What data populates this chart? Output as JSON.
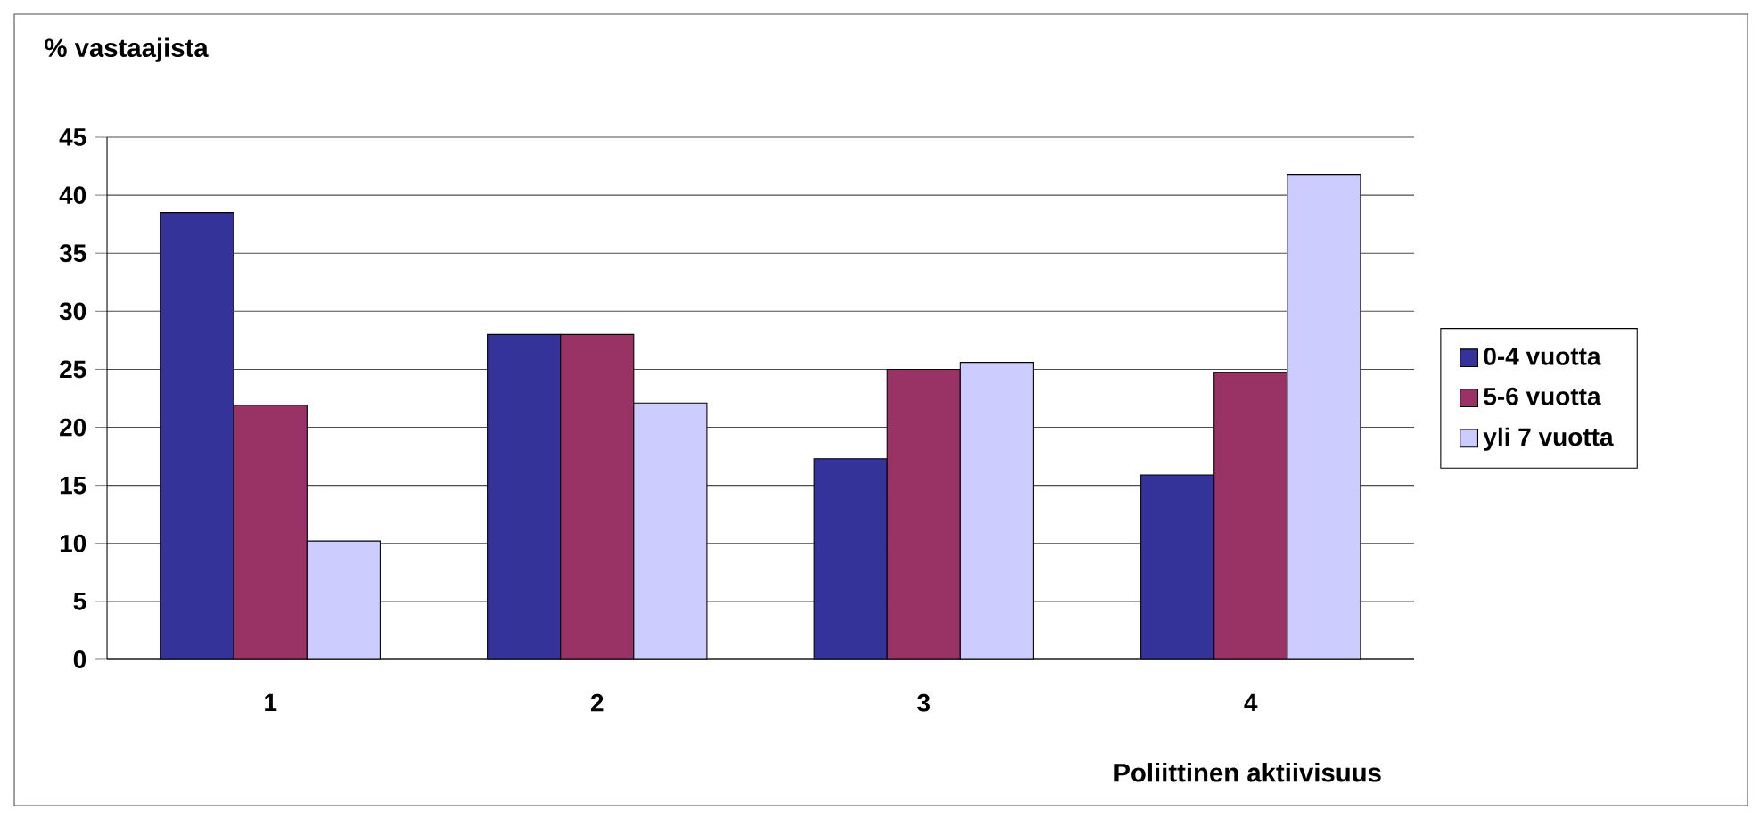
{
  "chart_data": {
    "type": "bar",
    "ylabel": "% vastaajista",
    "xlabel": "Poliittinen aktiivisuus",
    "categories": [
      "1",
      "2",
      "3",
      "4"
    ],
    "series": [
      {
        "name": "0-4 vuotta",
        "color": "#333399",
        "values": [
          38.5,
          28,
          17.3,
          15.9
        ]
      },
      {
        "name": "5-6 vuotta",
        "color": "#993366",
        "values": [
          21.9,
          28,
          25,
          24.7
        ]
      },
      {
        "name": "yli 7 vuotta",
        "color": "#ccccff",
        "values": [
          10.2,
          22.1,
          25.6,
          41.8
        ]
      }
    ],
    "ylim": [
      0,
      45
    ],
    "yticks": [
      0,
      5,
      10,
      15,
      20,
      25,
      30,
      35,
      40,
      45
    ],
    "grid": "y",
    "legend": "right"
  }
}
